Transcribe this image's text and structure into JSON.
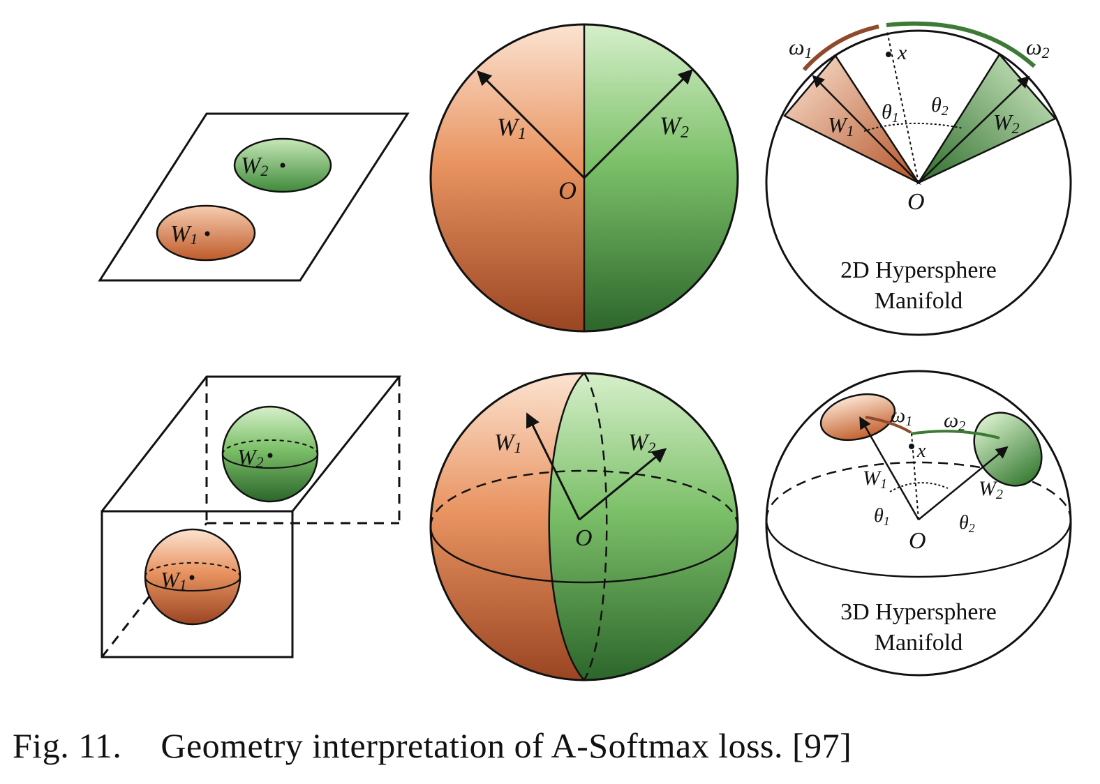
{
  "colors": {
    "orange_light": "#f9dcc6",
    "orange_mid": "#e3894f",
    "orange_dark": "#9e4a24",
    "green_light": "#cde9c0",
    "green_mid": "#6fb55f",
    "green_dark": "#2f6a2e",
    "arc_orange": "#8f4a2c",
    "arc_green": "#3d7a35",
    "stroke": "#111111"
  },
  "labels": {
    "w1_letter": "W",
    "w1_sub": "1",
    "w2_letter": "W",
    "w2_sub": "2",
    "origin": "O",
    "x": "x",
    "omega1_letter": "ω",
    "omega1_sub": "1",
    "omega2_letter": "ω",
    "omega2_sub": "2",
    "theta1_letter": "θ",
    "theta1_sub": "1",
    "theta2_letter": "θ",
    "theta2_sub": "2"
  },
  "panels": {
    "top_right": {
      "title_line1": "2D Hypersphere",
      "title_line2": "Manifold"
    },
    "bottom_right": {
      "title_line1": "3D Hypersphere",
      "title_line2": "Manifold"
    }
  },
  "caption": {
    "number": "Fig. 11.",
    "text": "Geometry interpretation of A-Softmax loss. [97]"
  }
}
